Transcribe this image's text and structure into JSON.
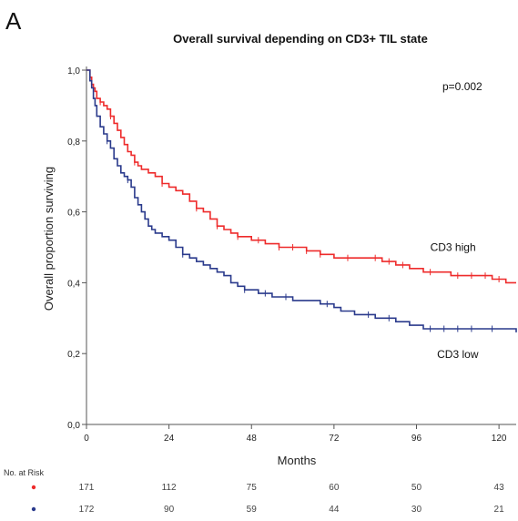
{
  "panel_label": "A",
  "chart_data": {
    "type": "line",
    "step": true,
    "title": "Overall survival depending on CD3+ TIL state",
    "xlabel": "Months",
    "ylabel": "Overall proportion surviving",
    "xlim": [
      0,
      125
    ],
    "ylim": [
      0,
      1.0
    ],
    "xticks": [
      0,
      24,
      48,
      72,
      96,
      120
    ],
    "yticks": [
      "0,0",
      "0,2",
      "0,4",
      "0,6",
      "0,8",
      "1,0"
    ],
    "grid": false,
    "annotations": {
      "p_value": "p=0.002"
    },
    "series": [
      {
        "name": "CD3 high",
        "color": "#ee2b2b",
        "x": [
          0,
          1,
          1.5,
          2,
          2.5,
          3,
          4,
          5,
          6,
          7,
          8,
          9,
          10,
          11,
          12,
          13,
          14,
          15,
          16,
          18,
          20,
          22,
          24,
          26,
          28,
          30,
          32,
          34,
          36,
          38,
          40,
          42,
          44,
          46,
          48,
          50,
          52,
          54,
          56,
          58,
          60,
          62,
          64,
          66,
          68,
          70,
          72,
          75,
          78,
          82,
          86,
          90,
          94,
          98,
          102,
          106,
          110,
          114,
          118,
          120,
          122,
          125
        ],
        "y": [
          1.0,
          0.98,
          0.96,
          0.95,
          0.94,
          0.92,
          0.91,
          0.9,
          0.89,
          0.87,
          0.85,
          0.83,
          0.81,
          0.79,
          0.77,
          0.76,
          0.74,
          0.73,
          0.72,
          0.71,
          0.7,
          0.68,
          0.67,
          0.66,
          0.65,
          0.63,
          0.61,
          0.6,
          0.58,
          0.56,
          0.55,
          0.54,
          0.53,
          0.53,
          0.52,
          0.52,
          0.51,
          0.51,
          0.5,
          0.5,
          0.5,
          0.5,
          0.49,
          0.49,
          0.48,
          0.48,
          0.47,
          0.47,
          0.47,
          0.47,
          0.46,
          0.45,
          0.44,
          0.43,
          0.43,
          0.42,
          0.42,
          0.42,
          0.41,
          0.41,
          0.4,
          0.4
        ],
        "censor_x": [
          4,
          7,
          14,
          22,
          32,
          38,
          44,
          50,
          56,
          60,
          64,
          68,
          76,
          84,
          88,
          92,
          100,
          108,
          112,
          116,
          120
        ]
      },
      {
        "name": "CD3 low",
        "color": "#2a3a8c",
        "x": [
          0,
          1,
          1.5,
          2,
          2.5,
          3,
          4,
          5,
          6,
          7,
          8,
          9,
          10,
          11,
          12,
          13,
          14,
          15,
          16,
          17,
          18,
          19,
          20,
          22,
          24,
          26,
          28,
          30,
          32,
          34,
          36,
          38,
          40,
          42,
          44,
          46,
          48,
          50,
          52,
          54,
          56,
          60,
          64,
          68,
          72,
          74,
          78,
          84,
          90,
          94,
          98,
          104,
          110,
          116,
          120,
          125
        ],
        "y": [
          1.0,
          0.97,
          0.95,
          0.92,
          0.9,
          0.87,
          0.84,
          0.82,
          0.8,
          0.78,
          0.75,
          0.73,
          0.71,
          0.7,
          0.69,
          0.67,
          0.64,
          0.62,
          0.6,
          0.58,
          0.56,
          0.55,
          0.54,
          0.53,
          0.52,
          0.5,
          0.48,
          0.47,
          0.46,
          0.45,
          0.44,
          0.43,
          0.42,
          0.4,
          0.39,
          0.38,
          0.38,
          0.37,
          0.37,
          0.36,
          0.36,
          0.35,
          0.35,
          0.34,
          0.33,
          0.32,
          0.31,
          0.3,
          0.29,
          0.28,
          0.27,
          0.27,
          0.27,
          0.27,
          0.27,
          0.26
        ],
        "censor_x": [
          6,
          12,
          28,
          46,
          52,
          58,
          70,
          82,
          88,
          100,
          104,
          108,
          112,
          118
        ]
      }
    ],
    "labels": [
      {
        "text": "CD3 high",
        "series": 0
      },
      {
        "text": "CD3 low",
        "series": 1
      }
    ],
    "risk_table": {
      "title": "No. at Risk",
      "times": [
        0,
        24,
        48,
        72,
        96,
        120
      ],
      "rows": [
        {
          "color": "#ee2b2b",
          "values": [
            "171",
            "112",
            "75",
            "60",
            "50",
            "43"
          ]
        },
        {
          "color": "#2a3a8c",
          "values": [
            "172",
            "90",
            "59",
            "44",
            "30",
            "21"
          ]
        }
      ]
    }
  }
}
